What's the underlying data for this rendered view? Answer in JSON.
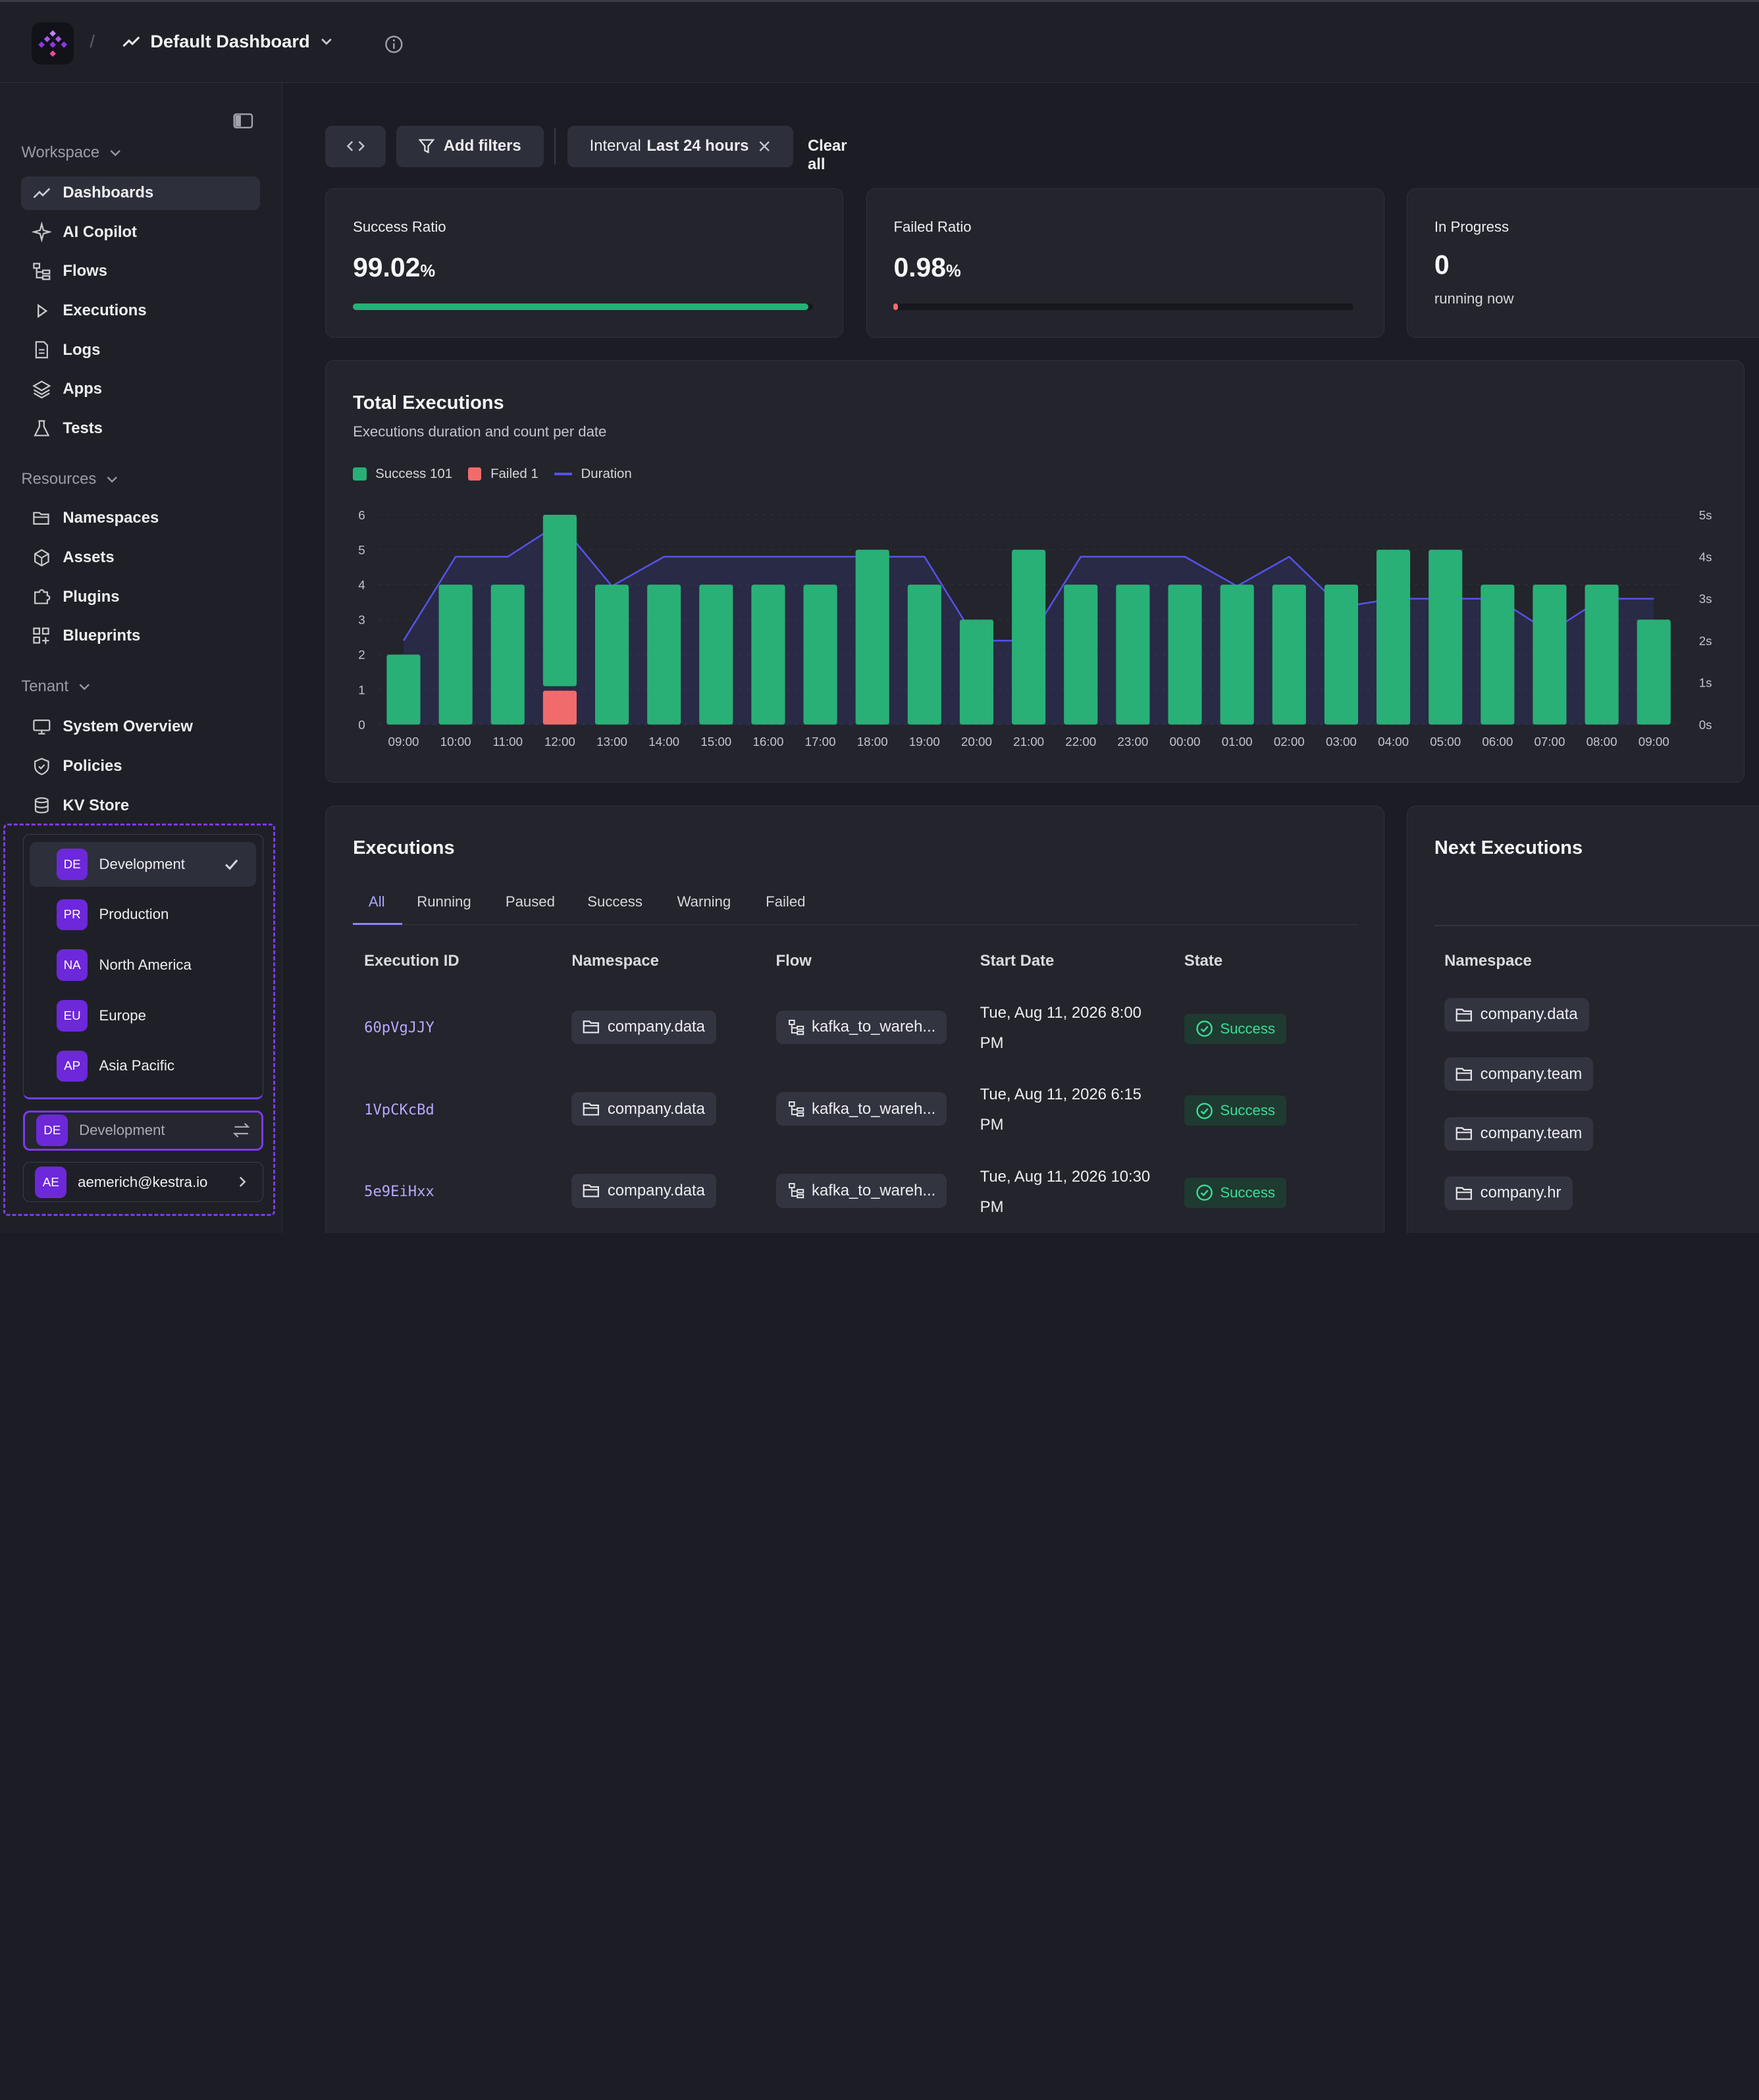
{
  "header": {
    "title": "Default Dashboard",
    "separator": "/"
  },
  "sidebar": {
    "sections": {
      "workspace": "Workspace",
      "resources": "Resources",
      "tenant": "Tenant"
    },
    "workspace_items": [
      {
        "label": "Dashboards",
        "icon": "chart-line-icon"
      },
      {
        "label": "AI Copilot",
        "icon": "sparkles-icon"
      },
      {
        "label": "Flows",
        "icon": "flow-tree-icon"
      },
      {
        "label": "Executions",
        "icon": "play-icon"
      },
      {
        "label": "Logs",
        "icon": "file-text-icon"
      },
      {
        "label": "Apps",
        "icon": "layers-icon"
      },
      {
        "label": "Tests",
        "icon": "flask-icon"
      }
    ],
    "resource_items": [
      {
        "label": "Namespaces",
        "icon": "folder-open-icon"
      },
      {
        "label": "Assets",
        "icon": "cube-icon"
      },
      {
        "label": "Plugins",
        "icon": "puzzle-icon"
      },
      {
        "label": "Blueprints",
        "icon": "blueprint-icon"
      }
    ],
    "tenant_items": [
      {
        "label": "System Overview",
        "icon": "monitor-icon"
      },
      {
        "label": "Policies",
        "icon": "shield-check-icon"
      },
      {
        "label": "KV Store",
        "icon": "database-icon"
      }
    ],
    "tenant_options": [
      {
        "badge": "DE",
        "label": "Development",
        "selected": true
      },
      {
        "badge": "PR",
        "label": "Production"
      },
      {
        "badge": "NA",
        "label": "North America"
      },
      {
        "badge": "EU",
        "label": "Europe"
      },
      {
        "badge": "AP",
        "label": "Asia Pacific"
      }
    ],
    "current_tenant": {
      "badge": "DE",
      "label": "Development"
    },
    "user": {
      "badge": "AE",
      "email": "aemerich@kestra.io"
    }
  },
  "filters": {
    "add_filters": "Add filters",
    "interval_prefix": "Interval",
    "interval_value": "Last 24 hours",
    "clear_all": "Clear all"
  },
  "stats": {
    "success": {
      "label": "Success Ratio",
      "value": "99.02",
      "unit": "%",
      "progress": 0.9902,
      "color": "#29b076"
    },
    "failed": {
      "label": "Failed Ratio",
      "value": "0.98",
      "unit": "%",
      "progress": 0.0098,
      "color": "#f26b6b"
    },
    "in_progress": {
      "label": "In Progress",
      "value": "0",
      "sub": "running now"
    }
  },
  "chart": {
    "title": "Total Executions",
    "subtitle": "Executions duration and count per date",
    "legend": [
      {
        "label": "Success 101",
        "color": "#29b076"
      },
      {
        "label": "Failed 1",
        "color": "#f26b6b"
      },
      {
        "label": "Duration",
        "color": "#5452e8"
      }
    ]
  },
  "chart_data": {
    "type": "bar",
    "categories": [
      "09:00",
      "10:00",
      "11:00",
      "12:00",
      "13:00",
      "14:00",
      "15:00",
      "16:00",
      "17:00",
      "18:00",
      "19:00",
      "20:00",
      "21:00",
      "22:00",
      "23:00",
      "00:00",
      "01:00",
      "02:00",
      "03:00",
      "04:00",
      "05:00",
      "06:00",
      "07:00",
      "08:00",
      "09:00"
    ],
    "series": [
      {
        "name": "Success",
        "values": [
          2,
          4,
          4,
          5,
          4,
          4,
          4,
          4,
          4,
          5,
          4,
          3,
          5,
          4,
          4,
          4,
          4,
          4,
          4,
          5,
          5,
          4,
          4,
          4,
          3
        ],
        "color": "#29b076"
      },
      {
        "name": "Failed",
        "values": [
          0,
          0,
          0,
          1,
          0,
          0,
          0,
          0,
          0,
          0,
          0,
          0,
          0,
          0,
          0,
          0,
          0,
          0,
          0,
          0,
          0,
          0,
          0,
          0,
          0
        ],
        "color": "#f26b6b"
      },
      {
        "name": "Duration",
        "axis": "right",
        "values": [
          2.0,
          4.0,
          4.0,
          4.8,
          3.3,
          4.0,
          4.0,
          4.0,
          4.0,
          4.0,
          4.0,
          2.0,
          2.0,
          4.0,
          4.0,
          4.0,
          3.3,
          4.0,
          2.8,
          3.0,
          3.0,
          3.0,
          2.2,
          3.0,
          3.0
        ],
        "color": "#5452e8"
      }
    ],
    "y_left": {
      "min": 0,
      "max": 6,
      "ticks": [
        "0",
        "1",
        "2",
        "3",
        "4",
        "5",
        "6"
      ]
    },
    "y_right": {
      "min": 0,
      "max": 5,
      "ticks": [
        "0s",
        "1s",
        "2s",
        "3s",
        "4s",
        "5s"
      ]
    },
    "stacked": true,
    "grid": true,
    "legend_position": "top-left"
  },
  "executions": {
    "title": "Executions",
    "tabs": [
      "All",
      "Running",
      "Paused",
      "Success",
      "Warning",
      "Failed"
    ],
    "columns": [
      "Execution ID",
      "Namespace",
      "Flow",
      "Start Date",
      "State"
    ],
    "rows": [
      {
        "id": "60pVgJJY",
        "namespace": "company.data",
        "flow": "kafka_to_wareh...",
        "date_line1": "Tue, Aug 11, 2026 8:00",
        "date_line2": "PM",
        "state": "Success"
      },
      {
        "id": "1VpCKcBd",
        "namespace": "company.data",
        "flow": "kafka_to_wareh...",
        "date_line1": "Tue, Aug 11, 2026 6:15",
        "date_line2": "PM",
        "state": "Success"
      },
      {
        "id": "5e9EiHxx",
        "namespace": "company.data",
        "flow": "kafka_to_wareh...",
        "date_line1": "Tue, Aug 11, 2026 10:30",
        "date_line2": "PM",
        "state": "Success"
      }
    ]
  },
  "next_executions": {
    "title": "Next Executions",
    "column": "Namespace",
    "rows": [
      "company.data",
      "company.team",
      "company.team",
      "company.hr"
    ]
  }
}
